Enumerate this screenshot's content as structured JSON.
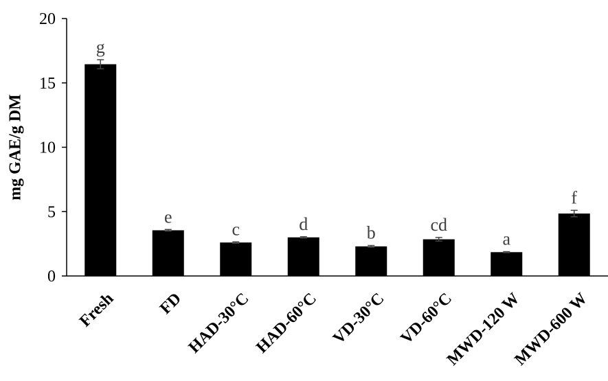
{
  "chart_data": {
    "type": "bar",
    "title": "",
    "xlabel": "",
    "ylabel": "mg GAE/g DM",
    "ylim": [
      0,
      20
    ],
    "yticks": [
      0,
      5,
      10,
      15,
      20
    ],
    "grid": false,
    "categories": [
      "Fresh",
      "FD",
      "HAD-30°C",
      "HAD-60°C",
      "VD-30°C",
      "VD-60°C",
      "MWD-120 W",
      "MWD-600 W"
    ],
    "values": [
      16.45,
      3.55,
      2.6,
      3.0,
      2.3,
      2.85,
      1.85,
      4.85
    ],
    "errors": [
      0.35,
      0.06,
      0.05,
      0.05,
      0.07,
      0.14,
      0.04,
      0.25
    ],
    "letters": [
      "g",
      "e",
      "c",
      "d",
      "b",
      "cd",
      "a",
      "f"
    ],
    "bar_color": "#000000"
  }
}
